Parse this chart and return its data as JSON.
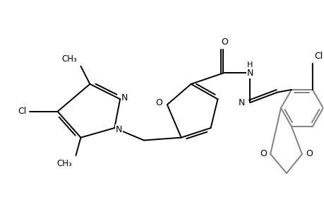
{
  "bg_color": "#ffffff",
  "line_color": "#000000",
  "gray_color": "#808080",
  "lw": 1.4,
  "figsize": [
    4.6,
    3.0
  ],
  "dpi": 100,
  "xlim": [
    0,
    11
  ],
  "ylim": [
    0,
    7
  ]
}
